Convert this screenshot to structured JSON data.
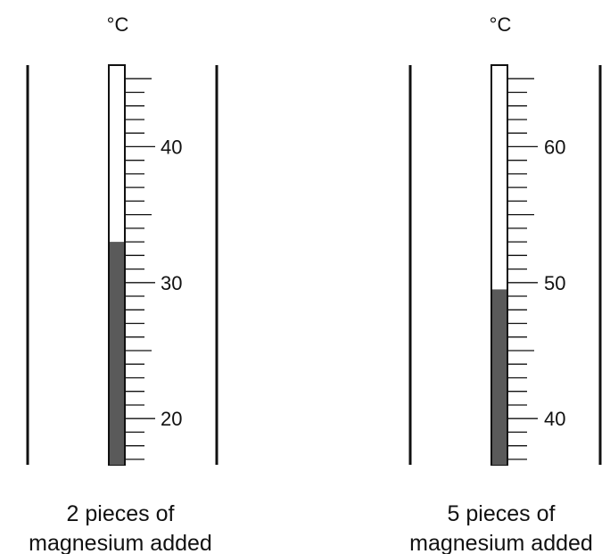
{
  "thermometers": [
    {
      "unit": "°C",
      "caption_line1": "2 pieces of",
      "caption_line2": "magnesium added",
      "scale": {
        "min": 16.6,
        "max": 46.0,
        "minor_step": 1,
        "major_step": 5
      },
      "major_labels": [
        "20",
        "30",
        "40"
      ],
      "reading": 33.0
    },
    {
      "unit": "°C",
      "caption_line1": "5 pieces of",
      "caption_line2": "magnesium added",
      "scale": {
        "min": 36.6,
        "max": 66.0,
        "minor_step": 1,
        "major_step": 5
      },
      "major_labels": [
        "40",
        "50",
        "60"
      ],
      "reading": 49.5
    }
  ],
  "colors": {
    "line": "#111111",
    "liquid": "#5a5a5a",
    "tube": "#ffffff"
  }
}
